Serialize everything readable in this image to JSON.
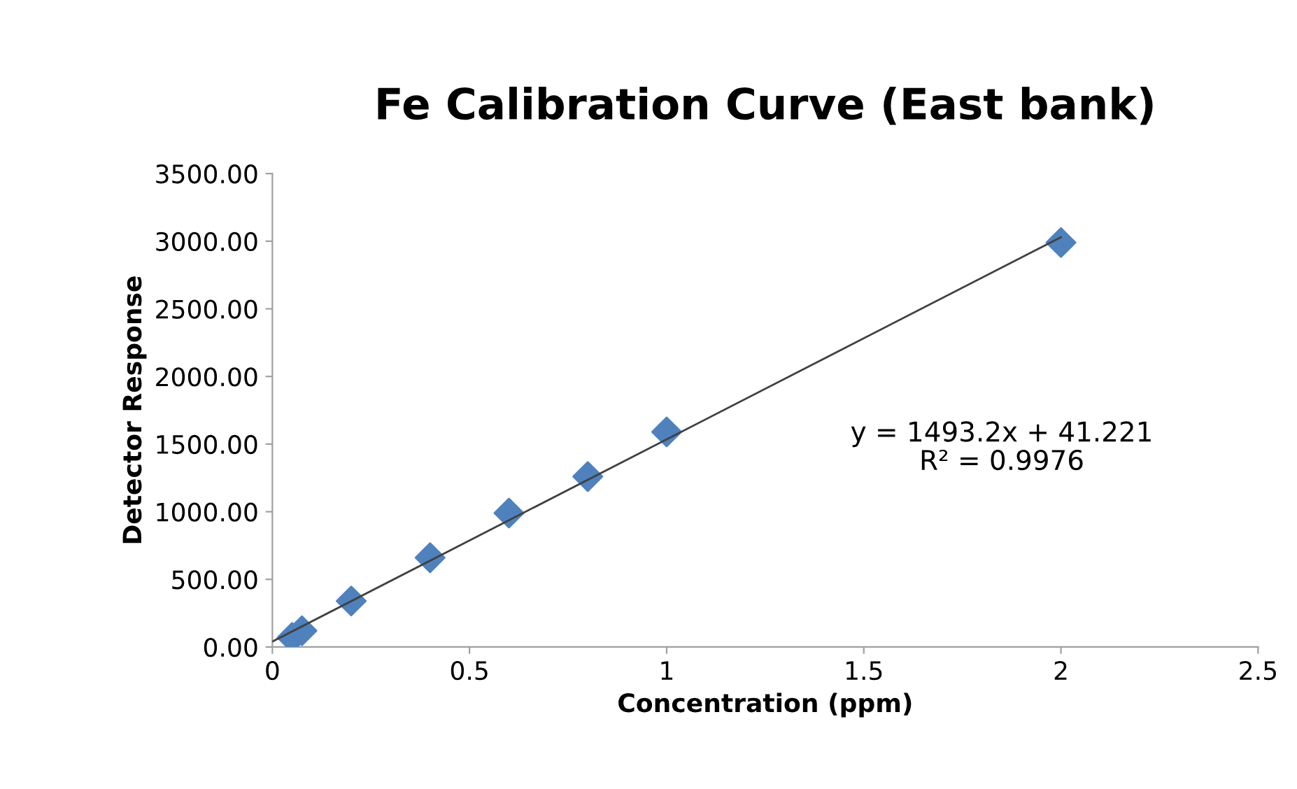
{
  "chart_data": {
    "type": "scatter",
    "title": "Fe Calibration Curve (East bank)",
    "xlabel": "Concentration (ppm)",
    "ylabel": "Detector Response",
    "series": [
      {
        "color": "#4f81bd",
        "marker": "diamond",
        "x": [
          0.05,
          0.075,
          0.2,
          0.4,
          0.6,
          0.8,
          1.0,
          2.0
        ],
        "values": [
          70,
          120,
          340,
          660,
          990,
          1260,
          1590,
          2990
        ]
      },
      {
        "type": "line",
        "color": "#404040",
        "marker": "none",
        "x": [
          0,
          2
        ],
        "values": [
          40,
          3030
        ]
      }
    ],
    "annotations": [
      "y = 1493.2x + 41.221",
      "R² = 0.9976"
    ],
    "xlim": [
      0,
      2.5
    ],
    "xticks": [
      0,
      0.5,
      1,
      1.5,
      2,
      2.5
    ],
    "ylim": [
      0,
      3500
    ],
    "yticks": [
      {
        "value": 0,
        "label": "0.00"
      },
      {
        "value": 500,
        "label": "500.00"
      },
      {
        "value": 1000,
        "label": "1000.00"
      },
      {
        "value": 1500,
        "label": "1500.00"
      },
      {
        "value": 2000,
        "label": "2000.00"
      },
      {
        "value": 2500,
        "label": "2500.00"
      },
      {
        "value": 3000,
        "label": "3000.00"
      },
      {
        "value": 3500,
        "label": "3500.00"
      }
    ],
    "grid": false,
    "legend": false
  }
}
